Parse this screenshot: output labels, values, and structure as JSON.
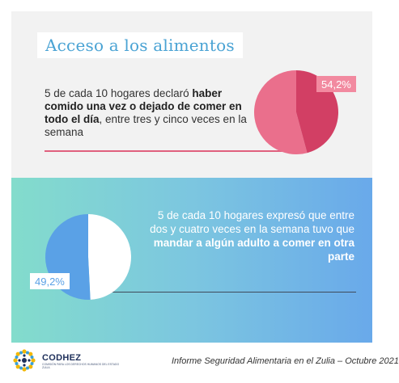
{
  "top_section": {
    "title": "Acceso a los alimentos",
    "text_intro": "5 de cada 10 hogares declaró ",
    "text_bold": "haber comido una vez o dejado de comer en todo el día",
    "text_outro": ", entre tres y cinco veces en la semana",
    "percentage_label": "54,2%",
    "chart_data": {
      "type": "pie",
      "values": [
        54.2,
        45.8
      ],
      "colors": [
        "#ea6f8c",
        "#d23f64"
      ]
    }
  },
  "bottom_section": {
    "text_intro": "5 de cada 10 hogares expresó que entre dos y cuatro veces en la semana tuvo que ",
    "text_bold": "mandar a algún adulto a comer en otra parte",
    "percentage_label": "49,2%",
    "chart_data": {
      "type": "pie",
      "values": [
        49.2,
        50.8
      ],
      "colors": [
        "#ffffff",
        "#5aa1e6"
      ]
    }
  },
  "footer": {
    "org_name": "CODHEZ",
    "org_subtitle": "Comisión para los Derechos Humanos del Estado Zulia",
    "report_text": "Informe Seguridad Alimentaria en el Zulia – Octubre 2021"
  },
  "colors": {
    "title_blue": "#4aa3d4",
    "accent_pink": "#e0607e",
    "gradient_start": "#83dccc",
    "gradient_end": "#69a9ea"
  }
}
